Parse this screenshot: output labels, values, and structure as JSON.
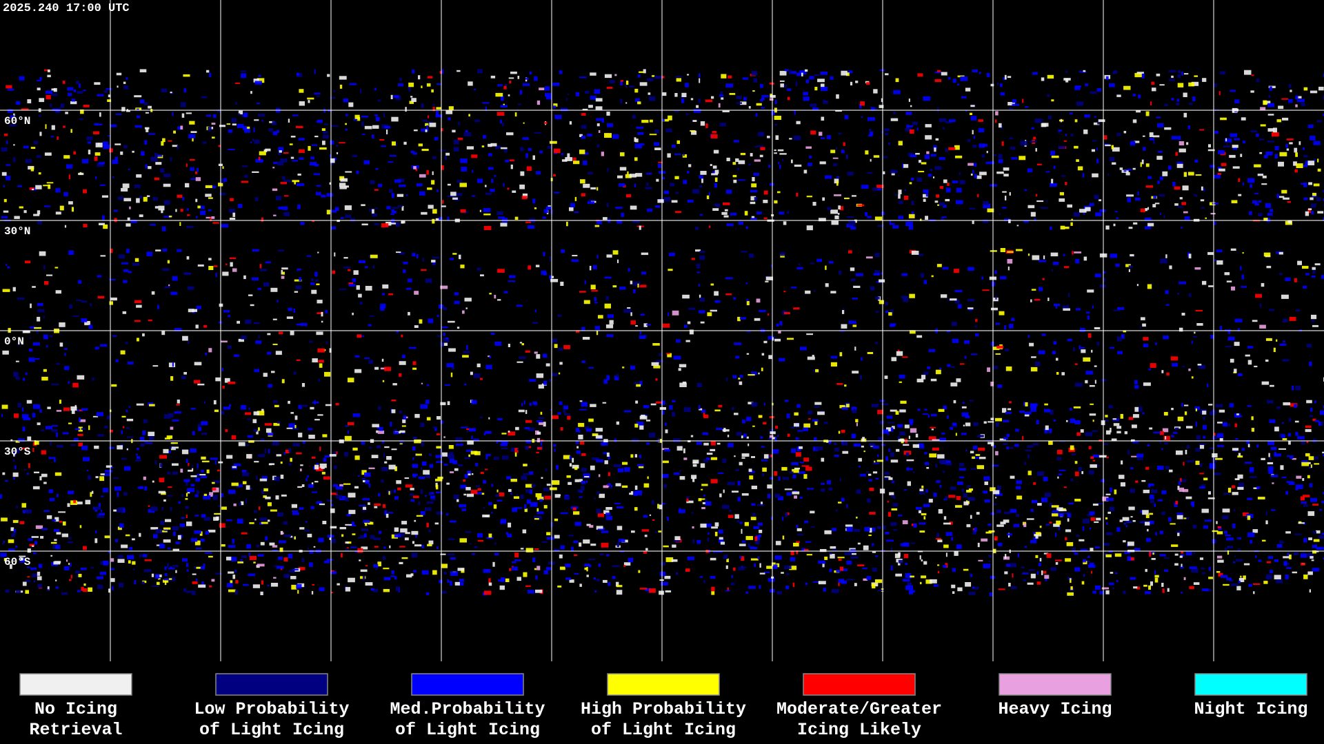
{
  "header": {
    "timestamp": "2025.240 17:00 UTC"
  },
  "map": {
    "latitude_labels": [
      "60°N",
      "30°N",
      "0°N",
      "30°S",
      "60°S"
    ]
  },
  "legend": {
    "items": [
      {
        "lines": [
          "No Icing",
          "Retrieval"
        ],
        "color": "#f0f0f0"
      },
      {
        "lines": [
          "Low Probability",
          "of Light Icing"
        ],
        "color": "#000080"
      },
      {
        "lines": [
          "Med.Probability",
          "of Light Icing"
        ],
        "color": "#0000ff"
      },
      {
        "lines": [
          "High Probability",
          "of Light Icing"
        ],
        "color": "#ffff00"
      },
      {
        "lines": [
          "Moderate/Greater",
          "Icing Likely"
        ],
        "color": "#ff0000"
      },
      {
        "lines": [
          "Heavy Icing"
        ],
        "color": "#e8a0e0"
      },
      {
        "lines": [
          "Night Icing"
        ],
        "color": "#00ffff"
      }
    ]
  }
}
